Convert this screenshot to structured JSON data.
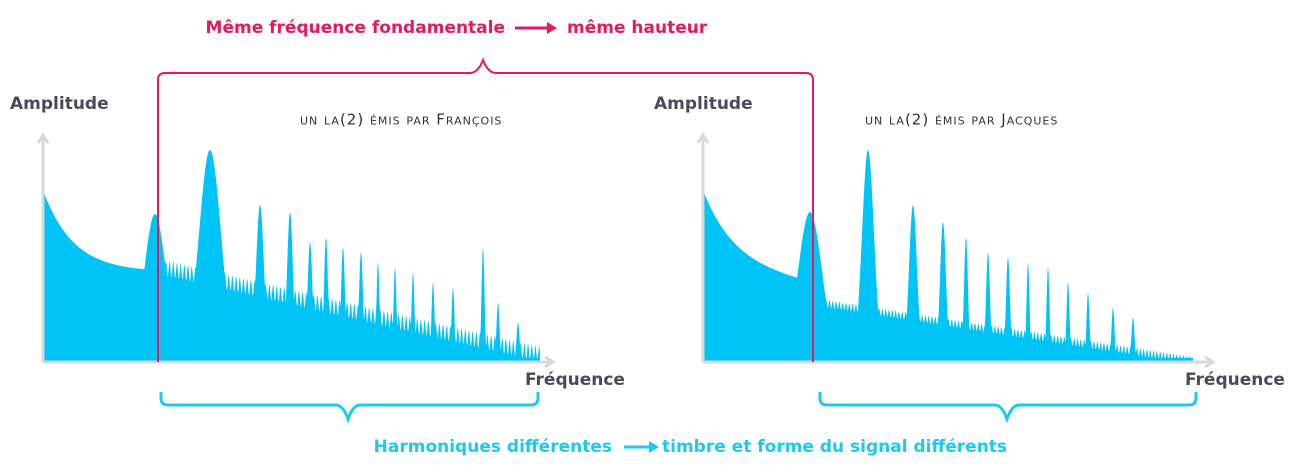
{
  "annotations": {
    "top": {
      "cause": "Même fréquence fondamentale",
      "effect": "même hauteur"
    },
    "bottom": {
      "cause": "Harmoniques différentes",
      "effect": "timbre et forme du signal différents"
    }
  },
  "panels": [
    {
      "title": "un la(2) émis par François",
      "y_axis": "Amplitude",
      "x_axis": "Fréquence"
    },
    {
      "title": "un la(2) émis par Jacques",
      "y_axis": "Amplitude",
      "x_axis": "Fréquence"
    }
  ]
}
